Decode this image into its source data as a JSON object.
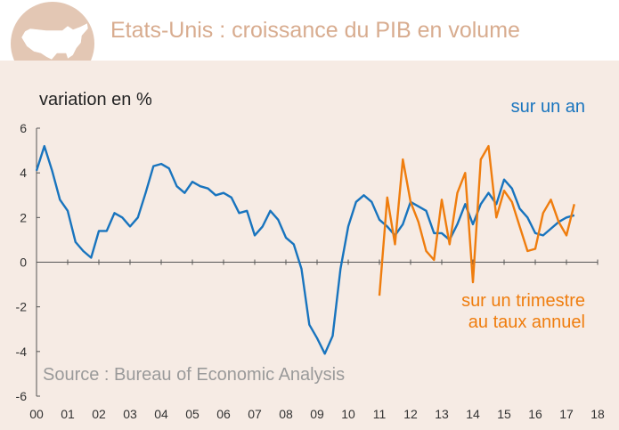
{
  "header": {
    "title": "Etats-Unis : croissance du PIB en volume",
    "icon": "usa-map-icon"
  },
  "chart_data": {
    "type": "line",
    "title": "Etats-Unis : croissance du PIB en volume",
    "ylabel": "variation en %",
    "source": "Source : Bureau of Economic Analysis",
    "xlim": [
      0,
      18
    ],
    "ylim": [
      -6,
      6
    ],
    "x_ticks": [
      "00",
      "01",
      "02",
      "03",
      "04",
      "05",
      "06",
      "07",
      "08",
      "09",
      "10",
      "11",
      "12",
      "13",
      "14",
      "15",
      "16",
      "17",
      "18"
    ],
    "y_ticks": [
      "6",
      "4",
      "2",
      "0",
      "-2",
      "-4",
      "-6"
    ],
    "y_tick_values": [
      6,
      4,
      2,
      0,
      -2,
      -4,
      -6
    ],
    "grid": false,
    "series": [
      {
        "name": "sur un an",
        "label_lines": [
          "sur un an"
        ],
        "color": "#1874be",
        "points": [
          [
            0.0,
            4.1
          ],
          [
            0.25,
            5.2
          ],
          [
            0.5,
            4.1
          ],
          [
            0.75,
            2.8
          ],
          [
            1.0,
            2.3
          ],
          [
            1.25,
            0.9
          ],
          [
            1.5,
            0.5
          ],
          [
            1.75,
            0.2
          ],
          [
            2.0,
            1.4
          ],
          [
            2.25,
            1.4
          ],
          [
            2.5,
            2.2
          ],
          [
            2.75,
            2.0
          ],
          [
            3.0,
            1.6
          ],
          [
            3.25,
            2.0
          ],
          [
            3.5,
            3.1
          ],
          [
            3.75,
            4.3
          ],
          [
            4.0,
            4.4
          ],
          [
            4.25,
            4.2
          ],
          [
            4.5,
            3.4
          ],
          [
            4.75,
            3.1
          ],
          [
            5.0,
            3.6
          ],
          [
            5.25,
            3.4
          ],
          [
            5.5,
            3.3
          ],
          [
            5.75,
            3.0
          ],
          [
            6.0,
            3.1
          ],
          [
            6.25,
            2.9
          ],
          [
            6.5,
            2.2
          ],
          [
            6.75,
            2.3
          ],
          [
            7.0,
            1.2
          ],
          [
            7.25,
            1.6
          ],
          [
            7.5,
            2.3
          ],
          [
            7.75,
            1.9
          ],
          [
            8.0,
            1.1
          ],
          [
            8.25,
            0.8
          ],
          [
            8.5,
            -0.3
          ],
          [
            8.75,
            -2.8
          ],
          [
            9.0,
            -3.4
          ],
          [
            9.25,
            -4.1
          ],
          [
            9.5,
            -3.3
          ],
          [
            9.75,
            -0.3
          ],
          [
            10.0,
            1.6
          ],
          [
            10.25,
            2.7
          ],
          [
            10.5,
            3.0
          ],
          [
            10.75,
            2.7
          ],
          [
            11.0,
            1.9
          ],
          [
            11.25,
            1.6
          ],
          [
            11.5,
            1.2
          ],
          [
            11.75,
            1.7
          ],
          [
            12.0,
            2.7
          ],
          [
            12.25,
            2.5
          ],
          [
            12.5,
            2.3
          ],
          [
            12.75,
            1.3
          ],
          [
            13.0,
            1.3
          ],
          [
            13.25,
            1.0
          ],
          [
            13.5,
            1.7
          ],
          [
            13.75,
            2.6
          ],
          [
            14.0,
            1.7
          ],
          [
            14.25,
            2.6
          ],
          [
            14.5,
            3.1
          ],
          [
            14.75,
            2.6
          ],
          [
            15.0,
            3.7
          ],
          [
            15.25,
            3.3
          ],
          [
            15.5,
            2.4
          ],
          [
            15.75,
            2.0
          ],
          [
            16.0,
            1.3
          ],
          [
            16.25,
            1.2
          ],
          [
            16.5,
            1.5
          ],
          [
            16.75,
            1.8
          ],
          [
            17.0,
            2.0
          ],
          [
            17.25,
            2.1
          ]
        ]
      },
      {
        "name": "sur un trimestre au taux annuel",
        "label_lines": [
          "sur un trimestre",
          "au taux annuel"
        ],
        "color": "#ef7d0e",
        "points": [
          [
            11.0,
            -1.5
          ],
          [
            11.25,
            2.9
          ],
          [
            11.5,
            0.8
          ],
          [
            11.75,
            4.6
          ],
          [
            12.0,
            2.7
          ],
          [
            12.25,
            1.8
          ],
          [
            12.5,
            0.5
          ],
          [
            12.75,
            0.1
          ],
          [
            13.0,
            2.8
          ],
          [
            13.25,
            0.8
          ],
          [
            13.5,
            3.1
          ],
          [
            13.75,
            4.0
          ],
          [
            14.0,
            -0.9
          ],
          [
            14.25,
            4.6
          ],
          [
            14.5,
            5.2
          ],
          [
            14.75,
            2.0
          ],
          [
            15.0,
            3.2
          ],
          [
            15.25,
            2.7
          ],
          [
            15.5,
            1.6
          ],
          [
            15.75,
            0.5
          ],
          [
            16.0,
            0.6
          ],
          [
            16.25,
            2.2
          ],
          [
            16.5,
            2.8
          ],
          [
            16.75,
            1.8
          ],
          [
            17.0,
            1.2
          ],
          [
            17.25,
            2.6
          ]
        ]
      }
    ]
  }
}
